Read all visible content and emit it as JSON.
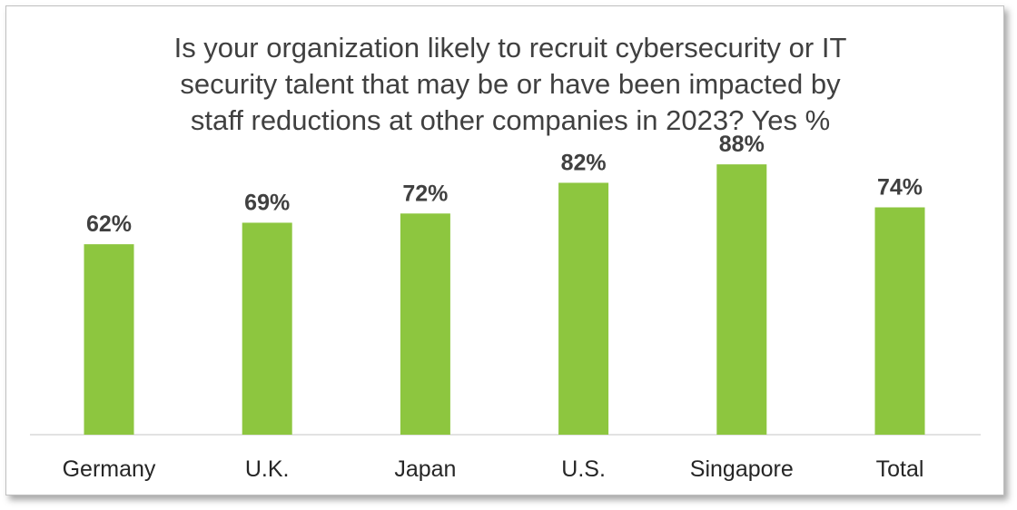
{
  "chart_data": {
    "type": "bar",
    "title": "Is your organization likely to recruit cybersecurity or IT\nsecurity talent that may be or have been impacted by\nstaff reductions at other companies in 2023? Yes %",
    "categories": [
      "Germany",
      "U.K.",
      "Japan",
      "U.S.",
      "Singapore",
      "Total"
    ],
    "values": [
      62,
      69,
      72,
      82,
      88,
      74
    ],
    "value_labels": [
      "62%",
      "69%",
      "72%",
      "82%",
      "88%",
      "74%"
    ],
    "xlabel": "",
    "ylabel": "",
    "ylim": [
      0,
      100
    ],
    "grid": false,
    "legend": "none",
    "bar_color": "#8DC63F"
  }
}
